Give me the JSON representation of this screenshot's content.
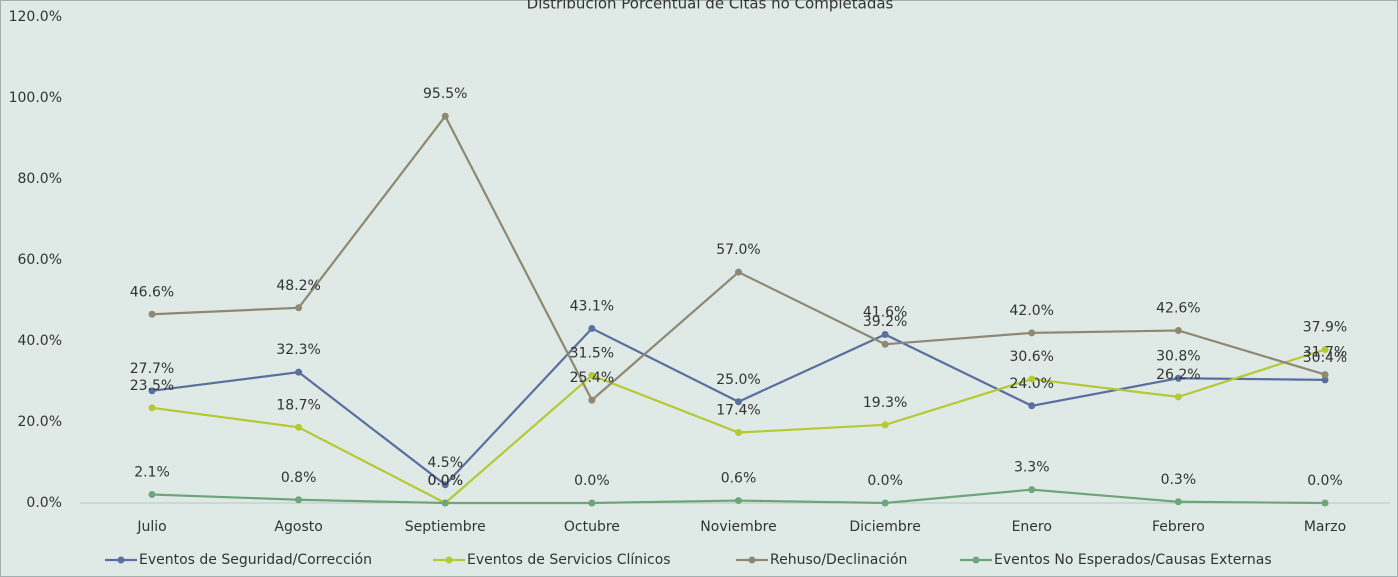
{
  "chart_data": {
    "type": "line",
    "title": "Distribución Porcentual de Citas no Completadas",
    "categories": [
      "Julio",
      "Agosto",
      "Septiembre",
      "Octubre",
      "Noviembre",
      "Diciembre",
      "Enero",
      "Febrero",
      "Marzo"
    ],
    "ylim": [
      0,
      120
    ],
    "yticks": [
      {
        "value": 0,
        "label": "0.0%"
      },
      {
        "value": 20,
        "label": "20.0%"
      },
      {
        "value": 40,
        "label": "40.0%"
      },
      {
        "value": 60,
        "label": "60.0%"
      },
      {
        "value": 80,
        "label": "80.0%"
      },
      {
        "value": 100,
        "label": "100.0%"
      },
      {
        "value": 120,
        "label": "120.0%"
      }
    ],
    "grid": false,
    "legend": "bottom",
    "series": [
      {
        "name": "Eventos de Seguridad/Corrección",
        "color": "#5a6fa0",
        "values": [
          27.7,
          32.3,
          4.5,
          43.1,
          25.0,
          41.6,
          24.0,
          30.8,
          30.4
        ],
        "value_labels": [
          "27.7%",
          "32.3%",
          "4.5%",
          "43.1%",
          "25.0%",
          "41.6%",
          "24.0%",
          "30.8%",
          "30.4%"
        ]
      },
      {
        "name": "Eventos de Servicios Clínicos",
        "color": "#b5c935",
        "values": [
          23.5,
          18.7,
          0.0,
          31.5,
          17.4,
          19.3,
          30.6,
          26.2,
          37.9
        ],
        "value_labels": [
          "23.5%",
          "18.7%",
          "0.0%",
          "31.5%",
          "17.4%",
          "19.3%",
          "30.6%",
          "26.2%",
          "37.9%"
        ]
      },
      {
        "name": "Rehuso/Declinación",
        "color": "#8f8872",
        "values": [
          46.6,
          48.2,
          95.5,
          25.4,
          57.0,
          39.2,
          42.0,
          42.6,
          31.7
        ],
        "value_labels": [
          "46.6%",
          "48.2%",
          "95.5%",
          "25.4%",
          "57.0%",
          "39.2%",
          "42.0%",
          "42.6%",
          "31.7%"
        ]
      },
      {
        "name": "Eventos No Esperados/Causas Externas",
        "color": "#6fa57b",
        "values": [
          2.1,
          0.8,
          0.0,
          0.0,
          0.6,
          0.0,
          3.3,
          0.3,
          0.0
        ],
        "value_labels": [
          "2.1%",
          "0.8%",
          "0.0%",
          "0.0%",
          "0.6%",
          "0.0%",
          "3.3%",
          "0.3%",
          "0.0%"
        ]
      }
    ]
  }
}
